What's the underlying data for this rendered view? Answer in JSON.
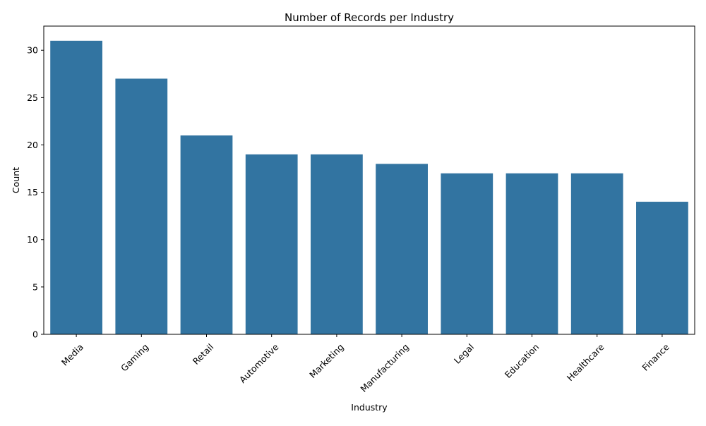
{
  "chart_data": {
    "type": "bar",
    "title": "Number of Records per Industry",
    "xlabel": "Industry",
    "ylabel": "Count",
    "categories": [
      "Media",
      "Gaming",
      "Retail",
      "Automotive",
      "Marketing",
      "Manufacturing",
      "Legal",
      "Education",
      "Healthcare",
      "Finance"
    ],
    "values": [
      31,
      27,
      21,
      19,
      19,
      18,
      17,
      17,
      17,
      14
    ],
    "ylim": [
      0,
      32.55
    ],
    "yticks": [
      0,
      5,
      10,
      15,
      20,
      25,
      30
    ],
    "bar_color": "#3274a1",
    "grid": false,
    "legend": "none",
    "xtick_rotation_deg": 45
  }
}
